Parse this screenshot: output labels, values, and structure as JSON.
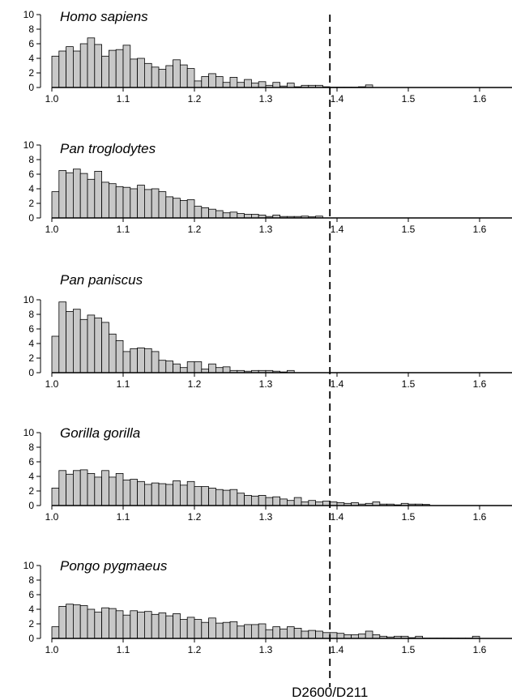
{
  "colors": {
    "bar_fill": "#c8c8c8",
    "bar_stroke": "#000000",
    "axis": "#000000",
    "ref_line": "#000000"
  },
  "chart_data": {
    "type": "bar",
    "layout": "five stacked histogram panels sharing one x range",
    "x_range": [
      1.0,
      1.65
    ],
    "bin_width": 0.01,
    "x_ticks": [
      "1.0",
      "1.1",
      "1.2",
      "1.3",
      "1.4",
      "1.5",
      "1.6"
    ],
    "y_ticks": [
      "0",
      "2",
      "4",
      "6",
      "8",
      "10"
    ],
    "ylim": [
      0,
      10
    ],
    "reference_line": {
      "x": 1.39,
      "style": "dashed",
      "label": "D2600/D211"
    },
    "grid": false,
    "panels": [
      {
        "title": "Homo sapiens",
        "bin_starts": [
          1.0,
          1.01,
          1.02,
          1.03,
          1.04,
          1.05,
          1.06,
          1.07,
          1.08,
          1.09,
          1.1,
          1.11,
          1.12,
          1.13,
          1.14,
          1.15,
          1.16,
          1.17,
          1.18,
          1.19,
          1.2,
          1.21,
          1.22,
          1.23,
          1.24,
          1.25,
          1.26,
          1.27,
          1.28,
          1.29,
          1.3,
          1.31,
          1.32,
          1.33,
          1.34,
          1.35,
          1.36,
          1.37,
          1.38,
          1.39,
          1.4,
          1.41,
          1.42,
          1.43,
          1.44
        ],
        "values": [
          4.3,
          5.0,
          5.6,
          5.0,
          6.0,
          6.8,
          5.9,
          4.3,
          5.1,
          5.2,
          5.8,
          3.9,
          4.0,
          3.3,
          2.8,
          2.5,
          3.0,
          3.8,
          3.1,
          2.6,
          0.9,
          1.5,
          1.9,
          1.5,
          0.7,
          1.4,
          0.7,
          1.1,
          0.6,
          0.8,
          0.3,
          0.7,
          0.2,
          0.6,
          0.1,
          0.3,
          0.3,
          0.3,
          0.1,
          0.05,
          0.05,
          0.05,
          0.05,
          0.1,
          0.35
        ]
      },
      {
        "title": "Pan troglodytes",
        "bin_starts": [
          1.0,
          1.01,
          1.02,
          1.03,
          1.04,
          1.05,
          1.06,
          1.07,
          1.08,
          1.09,
          1.1,
          1.11,
          1.12,
          1.13,
          1.14,
          1.15,
          1.16,
          1.17,
          1.18,
          1.19,
          1.2,
          1.21,
          1.22,
          1.23,
          1.24,
          1.25,
          1.26,
          1.27,
          1.28,
          1.29,
          1.3,
          1.31,
          1.32,
          1.33,
          1.34,
          1.35,
          1.36,
          1.37
        ],
        "values": [
          3.6,
          6.5,
          6.2,
          6.7,
          6.1,
          5.3,
          6.4,
          4.9,
          4.7,
          4.3,
          4.2,
          4.0,
          4.5,
          3.9,
          4.0,
          3.6,
          2.9,
          2.7,
          2.4,
          2.5,
          1.6,
          1.4,
          1.2,
          1.0,
          0.7,
          0.8,
          0.6,
          0.5,
          0.5,
          0.4,
          0.2,
          0.4,
          0.2,
          0.2,
          0.2,
          0.25,
          0.15,
          0.25
        ]
      },
      {
        "title": "Pan paniscus",
        "bin_starts": [
          1.0,
          1.01,
          1.02,
          1.03,
          1.04,
          1.05,
          1.06,
          1.07,
          1.08,
          1.09,
          1.1,
          1.11,
          1.12,
          1.13,
          1.14,
          1.15,
          1.16,
          1.17,
          1.18,
          1.19,
          1.2,
          1.21,
          1.22,
          1.23,
          1.24,
          1.25,
          1.26,
          1.27,
          1.28,
          1.29,
          1.3,
          1.31,
          1.32,
          1.33
        ],
        "values": [
          5.0,
          9.7,
          8.4,
          8.7,
          7.3,
          7.9,
          7.5,
          6.9,
          5.3,
          4.4,
          2.9,
          3.3,
          3.4,
          3.3,
          2.9,
          1.7,
          1.6,
          1.2,
          0.7,
          1.5,
          1.5,
          0.5,
          1.2,
          0.7,
          0.8,
          0.3,
          0.3,
          0.2,
          0.3,
          0.3,
          0.3,
          0.2,
          0.1,
          0.3
        ]
      },
      {
        "title": "Gorilla gorilla",
        "bin_starts": [
          1.0,
          1.01,
          1.02,
          1.03,
          1.04,
          1.05,
          1.06,
          1.07,
          1.08,
          1.09,
          1.1,
          1.11,
          1.12,
          1.13,
          1.14,
          1.15,
          1.16,
          1.17,
          1.18,
          1.19,
          1.2,
          1.21,
          1.22,
          1.23,
          1.24,
          1.25,
          1.26,
          1.27,
          1.28,
          1.29,
          1.3,
          1.31,
          1.32,
          1.33,
          1.34,
          1.35,
          1.36,
          1.37,
          1.38,
          1.39,
          1.4,
          1.41,
          1.42,
          1.43,
          1.44,
          1.45,
          1.46,
          1.47,
          1.48,
          1.49,
          1.5,
          1.51,
          1.52
        ],
        "values": [
          2.4,
          4.8,
          4.3,
          4.8,
          4.9,
          4.4,
          3.9,
          4.8,
          3.9,
          4.4,
          3.5,
          3.6,
          3.3,
          2.9,
          3.1,
          3.0,
          2.9,
          3.4,
          2.8,
          3.3,
          2.6,
          2.6,
          2.4,
          2.2,
          2.1,
          2.2,
          1.7,
          1.4,
          1.3,
          1.4,
          1.1,
          1.2,
          0.9,
          0.7,
          1.1,
          0.5,
          0.7,
          0.5,
          0.6,
          0.5,
          0.4,
          0.3,
          0.4,
          0.2,
          0.3,
          0.5,
          0.2,
          0.2,
          0.1,
          0.3,
          0.2,
          0.2,
          0.15
        ]
      },
      {
        "title": "Pongo pygmaeus",
        "bin_starts": [
          1.0,
          1.01,
          1.02,
          1.03,
          1.04,
          1.05,
          1.06,
          1.07,
          1.08,
          1.09,
          1.1,
          1.11,
          1.12,
          1.13,
          1.14,
          1.15,
          1.16,
          1.17,
          1.18,
          1.19,
          1.2,
          1.21,
          1.22,
          1.23,
          1.24,
          1.25,
          1.26,
          1.27,
          1.28,
          1.29,
          1.3,
          1.31,
          1.32,
          1.33,
          1.34,
          1.35,
          1.36,
          1.37,
          1.38,
          1.39,
          1.4,
          1.41,
          1.42,
          1.43,
          1.44,
          1.45,
          1.46,
          1.47,
          1.48,
          1.49,
          1.5,
          1.51,
          1.52,
          1.53,
          1.54,
          1.55,
          1.56,
          1.57,
          1.58,
          1.59
        ],
        "values": [
          1.6,
          4.4,
          4.7,
          4.6,
          4.5,
          4.0,
          3.6,
          4.2,
          4.1,
          3.8,
          3.2,
          3.8,
          3.6,
          3.7,
          3.3,
          3.5,
          3.1,
          3.4,
          2.6,
          2.9,
          2.6,
          2.2,
          2.8,
          2.1,
          2.2,
          2.3,
          1.7,
          1.9,
          1.9,
          2.0,
          1.2,
          1.6,
          1.3,
          1.6,
          1.4,
          1.0,
          1.1,
          1.0,
          0.8,
          0.8,
          0.7,
          0.5,
          0.5,
          0.6,
          1.0,
          0.5,
          0.3,
          0.2,
          0.3,
          0.3,
          0.1,
          0.3,
          0.05,
          0.05,
          0.05,
          0.05,
          0.05,
          0.05,
          0.05,
          0.3
        ]
      }
    ]
  }
}
